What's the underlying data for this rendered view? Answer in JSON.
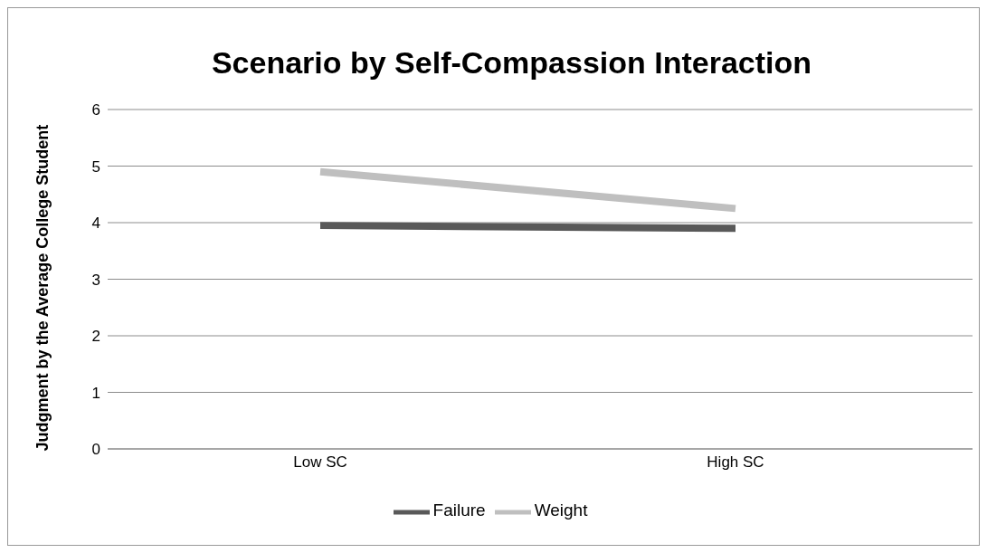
{
  "chart_data": {
    "type": "line",
    "title": "Scenario by Self-Compassion Interaction",
    "ylabel": "Judgment by the Average College Student",
    "categories": [
      "Low SC",
      "High SC"
    ],
    "series": [
      {
        "name": "Failure",
        "color": "#595959",
        "values": [
          3.95,
          3.9
        ]
      },
      {
        "name": "Weight",
        "color": "#bfbfbf",
        "values": [
          4.9,
          4.25
        ]
      }
    ],
    "ylim": [
      0,
      6
    ],
    "yticks": [
      0,
      1,
      2,
      3,
      4,
      5,
      6
    ],
    "grid": "y",
    "legend": "bottom",
    "marker": "none",
    "line_style": "solid"
  }
}
